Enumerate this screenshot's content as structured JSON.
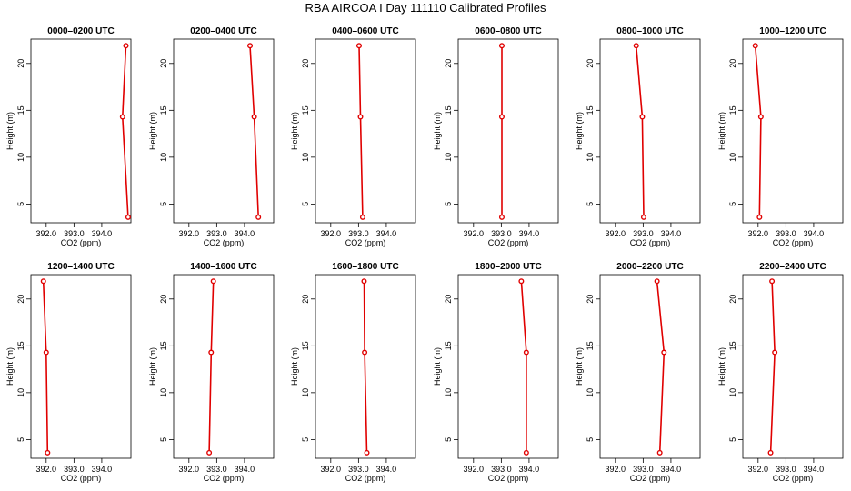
{
  "title": "RBA AIRCOA I  Day 111110  Calibrated Profiles",
  "axes": {
    "xlabel": "CO2 (ppm)",
    "ylabel": "Height (m)",
    "x_ticks": [
      "392.0",
      "393.0",
      "394.0"
    ],
    "x_tick_values": [
      392.0,
      393.0,
      394.0
    ],
    "y_ticks": [
      "5",
      "10",
      "15",
      "20"
    ],
    "y_tick_values": [
      5,
      10,
      15,
      20
    ],
    "xlim": [
      391.45,
      395.05
    ],
    "ylim": [
      3.0,
      22.6
    ]
  },
  "chart_data": [
    {
      "type": "line",
      "title": "0000–0200 UTC",
      "x": [
        394.95,
        394.75,
        394.87
      ],
      "y": [
        3.6,
        14.3,
        21.9
      ]
    },
    {
      "type": "line",
      "title": "0200–0400 UTC",
      "x": [
        394.5,
        394.35,
        394.2
      ],
      "y": [
        3.6,
        14.3,
        21.9
      ]
    },
    {
      "type": "line",
      "title": "0400–0600 UTC",
      "x": [
        393.15,
        393.07,
        393.02
      ],
      "y": [
        3.6,
        14.3,
        21.9
      ]
    },
    {
      "type": "line",
      "title": "0600–0800 UTC",
      "x": [
        393.02,
        393.02,
        393.02
      ],
      "y": [
        3.6,
        14.3,
        21.9
      ]
    },
    {
      "type": "line",
      "title": "0800–1000 UTC",
      "x": [
        393.02,
        392.97,
        392.75
      ],
      "y": [
        3.6,
        14.3,
        21.9
      ]
    },
    {
      "type": "line",
      "title": "1000–1200 UTC",
      "x": [
        392.05,
        392.1,
        391.9
      ],
      "y": [
        3.6,
        14.3,
        21.9
      ]
    },
    {
      "type": "line",
      "title": "1200–1400 UTC",
      "x": [
        392.05,
        392.0,
        391.9
      ],
      "y": [
        3.6,
        14.3,
        21.9
      ]
    },
    {
      "type": "line",
      "title": "1400–1600 UTC",
      "x": [
        392.73,
        392.8,
        392.88
      ],
      "y": [
        3.6,
        14.3,
        21.9
      ]
    },
    {
      "type": "line",
      "title": "1600–1800 UTC",
      "x": [
        393.3,
        393.22,
        393.2
      ],
      "y": [
        3.6,
        14.3,
        21.9
      ]
    },
    {
      "type": "line",
      "title": "1800–2000 UTC",
      "x": [
        393.9,
        393.9,
        393.72
      ],
      "y": [
        3.6,
        14.3,
        21.9
      ]
    },
    {
      "type": "line",
      "title": "2000–2200 UTC",
      "x": [
        393.6,
        393.75,
        393.5
      ],
      "y": [
        3.6,
        14.3,
        21.9
      ]
    },
    {
      "type": "line",
      "title": "2200–2400 UTC",
      "x": [
        392.45,
        392.6,
        392.5
      ],
      "y": [
        3.6,
        14.3,
        21.9
      ]
    }
  ],
  "colors": {
    "line": "#e00000",
    "marker_fill": "#ffffff",
    "axes": "#000000"
  }
}
